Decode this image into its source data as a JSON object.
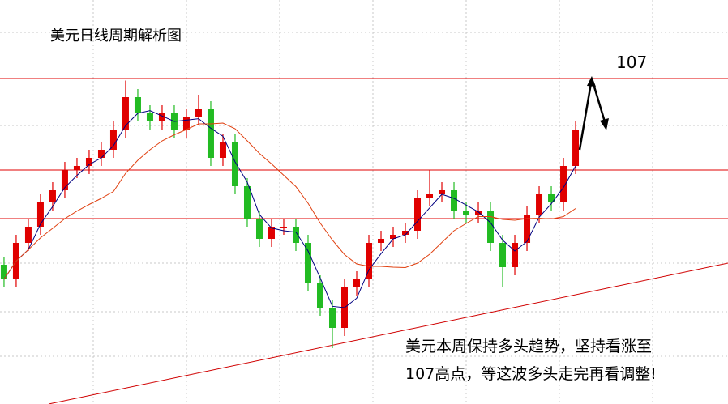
{
  "chart_data": {
    "type": "candlestick",
    "title": "美元日线周期解析图",
    "target_label": "107",
    "annotation": [
      "美元本周保持多头趋势，坚持看涨至",
      "107高点，等这波多头走完再看调整!"
    ],
    "open": [
      102.4,
      102.04,
      102.94,
      103.34,
      103.94,
      104.24,
      104.74,
      104.84,
      105.04,
      105.24,
      105.74,
      106.54,
      106.14,
      105.94,
      106.14,
      105.74,
      106.04,
      106.24,
      105.04,
      105.44,
      104.34,
      103.54,
      103.04,
      103.34,
      103.34,
      102.94,
      101.94,
      101.34,
      100.84,
      101.84,
      102.04,
      102.94,
      103.04,
      103.14,
      103.24,
      104.04,
      104.14,
      104.24,
      103.74,
      103.64,
      103.74,
      102.94,
      102.34,
      102.94,
      103.64,
      104.14,
      103.94,
      104.84
    ],
    "high": [
      102.6,
      103.14,
      103.54,
      104.14,
      104.44,
      104.94,
      105.04,
      105.24,
      105.44,
      105.94,
      106.95,
      106.74,
      106.34,
      106.34,
      106.34,
      106.24,
      106.6,
      106.44,
      105.64,
      105.64,
      104.54,
      103.74,
      103.54,
      103.54,
      103.54,
      103.14,
      102.14,
      101.54,
      102.04,
      102.24,
      103.14,
      103.24,
      103.34,
      103.44,
      104.24,
      104.74,
      104.44,
      104.44,
      103.94,
      103.94,
      103.94,
      103.14,
      103.14,
      103.84,
      104.34,
      104.34,
      105.04,
      105.94
    ],
    "low": [
      101.84,
      101.84,
      102.74,
      103.14,
      103.74,
      104.04,
      104.54,
      104.64,
      104.84,
      105.04,
      105.54,
      105.94,
      105.74,
      105.74,
      105.54,
      105.54,
      105.84,
      104.84,
      104.84,
      104.14,
      103.34,
      102.84,
      102.84,
      103.14,
      102.74,
      101.74,
      101.14,
      100.34,
      100.64,
      101.64,
      101.84,
      102.74,
      102.84,
      102.94,
      103.04,
      103.84,
      103.94,
      103.54,
      103.44,
      103.44,
      102.74,
      101.84,
      102.14,
      102.74,
      103.44,
      103.74,
      103.74,
      104.64
    ],
    "close": [
      102.04,
      102.94,
      103.34,
      103.94,
      104.24,
      104.74,
      104.84,
      105.04,
      105.24,
      105.74,
      106.54,
      106.14,
      105.94,
      106.14,
      105.74,
      106.04,
      106.24,
      105.04,
      105.44,
      104.34,
      103.54,
      103.04,
      103.34,
      103.34,
      102.94,
      101.94,
      101.34,
      100.84,
      101.84,
      102.04,
      102.94,
      103.04,
      103.14,
      103.24,
      104.04,
      104.14,
      104.24,
      103.74,
      103.64,
      103.74,
      102.94,
      102.34,
      102.94,
      103.64,
      104.14,
      103.94,
      104.84,
      105.74
    ],
    "up_color": "#e00000",
    "down_color": "#22bb22",
    "moving_averages": [
      {
        "period": 3,
        "color": "#000080"
      },
      {
        "period": 10,
        "color": "#e04010"
      }
    ],
    "hlines": [
      107,
      104.74,
      103.54
    ],
    "hline_color": "#e00000",
    "trendline": {
      "x": [
        3.67,
        59.53
      ],
      "y": [
        98.96,
        102.44
      ],
      "color": "#d00000"
    },
    "arrow": {
      "x": [
        47.33,
        48.33,
        49.53
      ],
      "y": [
        105.24,
        107,
        105.8
      ]
    },
    "xlim": [
      -0.33,
      59.53
    ],
    "ylim": [
      99,
      108
    ]
  }
}
